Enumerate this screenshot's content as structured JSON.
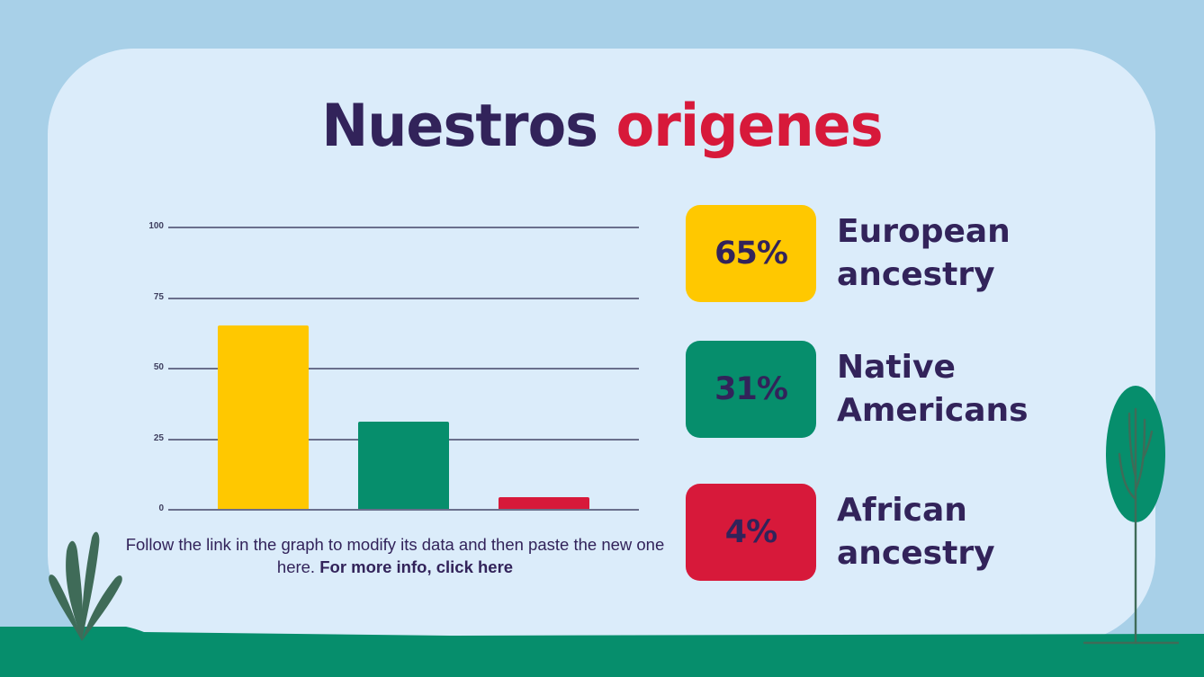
{
  "title": {
    "part1": "Nuestros",
    "part2": "origenes"
  },
  "chart_data": {
    "type": "bar",
    "title": "",
    "xlabel": "",
    "ylabel": "",
    "categories": [
      "European ancestry",
      "Native Americans",
      "African ancestry"
    ],
    "values": [
      65,
      31,
      4
    ],
    "colors": [
      "#ffc800",
      "#068e6c",
      "#d7193a"
    ],
    "ylim": [
      0,
      100
    ],
    "yticks": [
      0,
      25,
      50,
      75,
      100
    ],
    "grid": true,
    "legend": "none"
  },
  "axis": {
    "ticks": [
      "100",
      "75",
      "50",
      "25",
      "0"
    ]
  },
  "caption": {
    "text": "Follow the link in the graph to modify its data and then paste the new one here.",
    "link": "For more info, click here"
  },
  "stats": [
    {
      "value": "65%",
      "line1": "European",
      "line2": "ancestry",
      "color": "#ffc800"
    },
    {
      "value": "31%",
      "line1": "Native",
      "line2": "Americans",
      "color": "#068e6c"
    },
    {
      "value": "4%",
      "line1": "African",
      "line2": "ancestry",
      "color": "#d7193a"
    }
  ],
  "colors": {
    "background": "#a8d0e8",
    "card": "#dbecfa",
    "ground": "#068e6c",
    "text_dark": "#32235a",
    "accent_red": "#d7193a",
    "accent_yellow": "#ffc800",
    "accent_green": "#068e6c"
  }
}
